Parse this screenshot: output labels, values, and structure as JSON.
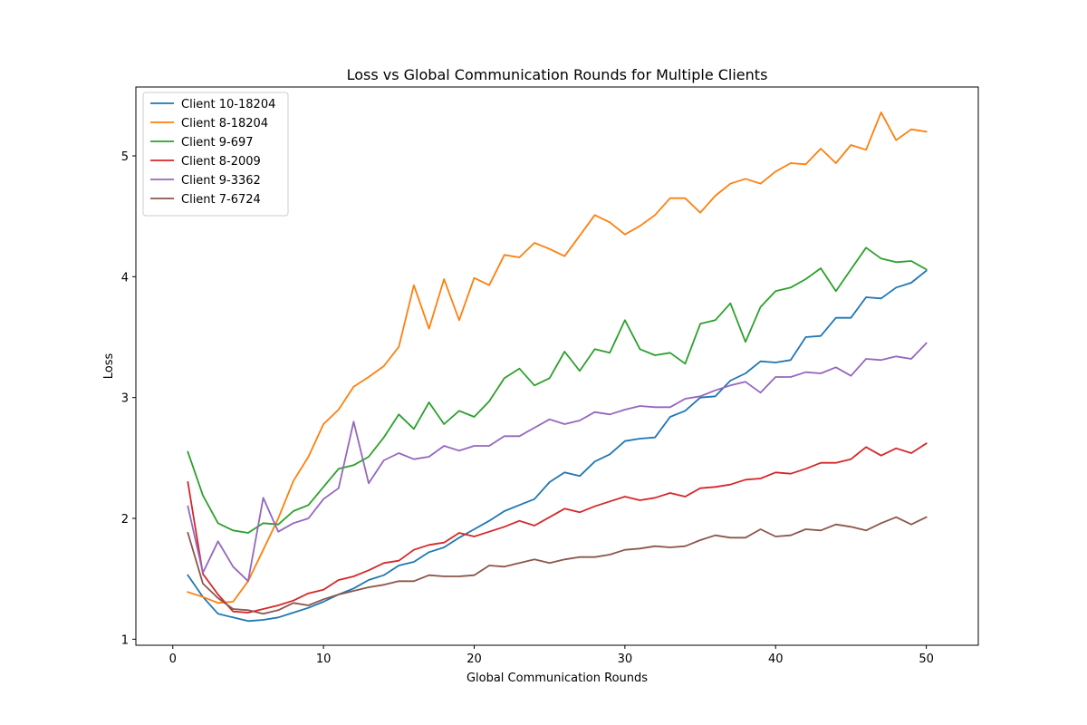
{
  "chart_data": {
    "type": "line",
    "title": "Loss vs Global Communication Rounds for Multiple Clients",
    "xlabel": "Global Communication Rounds",
    "ylabel": "Loss",
    "xlim": [
      -2.45,
      53.45
    ],
    "ylim": [
      0.95,
      5.57
    ],
    "xticks": [
      0,
      10,
      20,
      30,
      40,
      50
    ],
    "yticks": [
      1,
      2,
      3,
      4,
      5
    ],
    "legend_position": "top-left",
    "grid": false,
    "x": [
      1,
      2,
      3,
      4,
      5,
      6,
      7,
      8,
      9,
      10,
      11,
      12,
      13,
      14,
      15,
      16,
      17,
      18,
      19,
      20,
      21,
      22,
      23,
      24,
      25,
      26,
      27,
      28,
      29,
      30,
      31,
      32,
      33,
      34,
      35,
      36,
      37,
      38,
      39,
      40,
      41,
      42,
      43,
      44,
      45,
      46,
      47,
      48,
      49,
      50
    ],
    "series": [
      {
        "name": "Client 10-18204",
        "color": "#1f77b4",
        "values": [
          1.53,
          1.35,
          1.21,
          1.18,
          1.15,
          1.16,
          1.18,
          1.22,
          1.26,
          1.31,
          1.37,
          1.42,
          1.49,
          1.53,
          1.61,
          1.64,
          1.72,
          1.76,
          1.84,
          1.91,
          1.98,
          2.06,
          2.11,
          2.16,
          2.3,
          2.38,
          2.35,
          2.47,
          2.53,
          2.64,
          2.66,
          2.67,
          2.84,
          2.89,
          3.0,
          3.01,
          3.14,
          3.2,
          3.3,
          3.29,
          3.31,
          3.5,
          3.51,
          3.66,
          3.66,
          3.83,
          3.82,
          3.91,
          3.95,
          4.05
        ]
      },
      {
        "name": "Client 8-18204",
        "color": "#ff7f0e",
        "values": [
          1.39,
          1.35,
          1.3,
          1.31,
          1.48,
          1.74,
          2.0,
          2.31,
          2.51,
          2.78,
          2.9,
          3.09,
          3.17,
          3.26,
          3.42,
          3.93,
          3.57,
          3.98,
          3.64,
          3.99,
          3.93,
          4.18,
          4.16,
          4.28,
          4.23,
          4.17,
          4.34,
          4.51,
          4.45,
          4.35,
          4.42,
          4.51,
          4.65,
          4.65,
          4.53,
          4.67,
          4.77,
          4.81,
          4.77,
          4.87,
          4.94,
          4.93,
          5.06,
          4.94,
          5.09,
          5.05,
          5.36,
          5.13,
          5.22,
          5.2
        ]
      },
      {
        "name": "Client 9-697",
        "color": "#2ca02c",
        "values": [
          2.55,
          2.19,
          1.96,
          1.9,
          1.88,
          1.96,
          1.95,
          2.06,
          2.11,
          2.26,
          2.41,
          2.44,
          2.51,
          2.67,
          2.86,
          2.74,
          2.96,
          2.78,
          2.89,
          2.84,
          2.97,
          3.16,
          3.24,
          3.1,
          3.16,
          3.38,
          3.22,
          3.4,
          3.37,
          3.64,
          3.4,
          3.35,
          3.37,
          3.28,
          3.61,
          3.64,
          3.78,
          3.46,
          3.75,
          3.88,
          3.91,
          3.98,
          4.07,
          3.88,
          4.06,
          4.24,
          4.15,
          4.12,
          4.13,
          4.06
        ]
      },
      {
        "name": "Client 8-2009",
        "color": "#d62728",
        "values": [
          2.3,
          1.54,
          1.37,
          1.23,
          1.22,
          1.25,
          1.28,
          1.32,
          1.38,
          1.41,
          1.49,
          1.52,
          1.57,
          1.63,
          1.65,
          1.74,
          1.78,
          1.8,
          1.88,
          1.85,
          1.89,
          1.93,
          1.98,
          1.94,
          2.01,
          2.08,
          2.05,
          2.1,
          2.14,
          2.18,
          2.15,
          2.17,
          2.21,
          2.18,
          2.25,
          2.26,
          2.28,
          2.32,
          2.33,
          2.38,
          2.37,
          2.41,
          2.46,
          2.46,
          2.49,
          2.59,
          2.52,
          2.58,
          2.54,
          2.62
        ]
      },
      {
        "name": "Client 9-3362",
        "color": "#9467bd",
        "values": [
          2.1,
          1.55,
          1.81,
          1.6,
          1.48,
          2.17,
          1.89,
          1.96,
          2.0,
          2.16,
          2.25,
          2.8,
          2.29,
          2.48,
          2.54,
          2.49,
          2.51,
          2.6,
          2.56,
          2.6,
          2.6,
          2.68,
          2.68,
          2.75,
          2.82,
          2.78,
          2.81,
          2.88,
          2.86,
          2.9,
          2.93,
          2.92,
          2.92,
          2.99,
          3.01,
          3.06,
          3.1,
          3.13,
          3.04,
          3.17,
          3.17,
          3.21,
          3.2,
          3.25,
          3.18,
          3.32,
          3.31,
          3.34,
          3.32,
          3.45
        ]
      },
      {
        "name": "Client 7-6724",
        "color": "#8c564b",
        "values": [
          1.88,
          1.46,
          1.34,
          1.25,
          1.24,
          1.21,
          1.24,
          1.3,
          1.28,
          1.33,
          1.37,
          1.4,
          1.43,
          1.45,
          1.48,
          1.48,
          1.53,
          1.52,
          1.52,
          1.53,
          1.61,
          1.6,
          1.63,
          1.66,
          1.63,
          1.66,
          1.68,
          1.68,
          1.7,
          1.74,
          1.75,
          1.77,
          1.76,
          1.77,
          1.82,
          1.86,
          1.84,
          1.84,
          1.91,
          1.85,
          1.86,
          1.91,
          1.9,
          1.95,
          1.93,
          1.9,
          1.96,
          2.01,
          1.95,
          2.01
        ]
      }
    ]
  }
}
